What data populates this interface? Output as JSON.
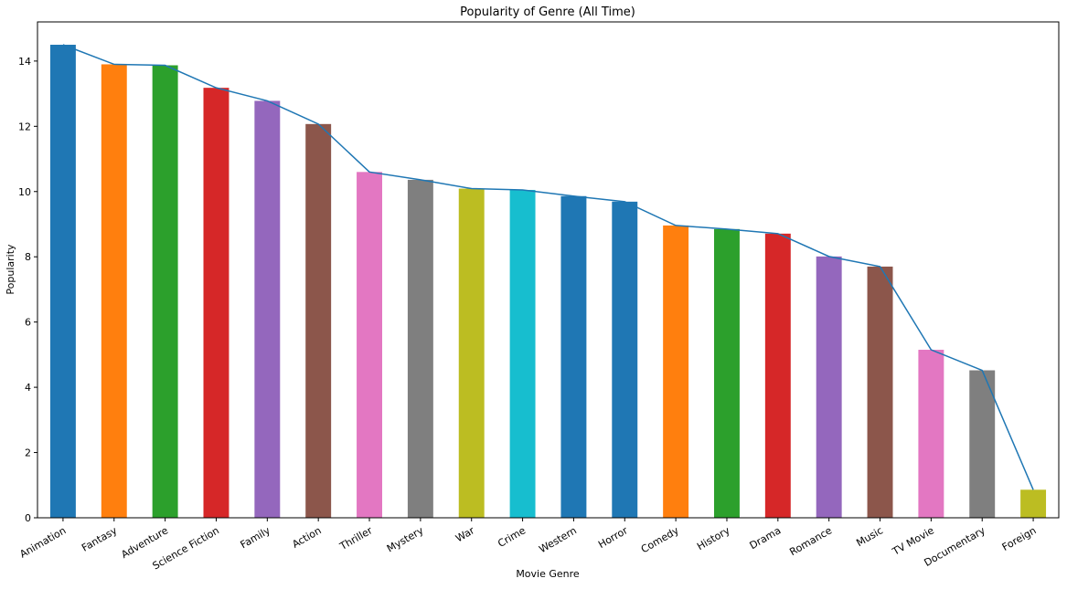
{
  "chart_data": {
    "type": "bar",
    "title": "Popularity of Genre (All Time)",
    "xlabel": "Movie Genre",
    "ylabel": "Popularity",
    "ylim": [
      0,
      15.2
    ],
    "yticks": [
      0,
      2,
      4,
      6,
      8,
      10,
      12,
      14
    ],
    "grid": false,
    "legend": "none",
    "categories": [
      "Animation",
      "Fantasy",
      "Adventure",
      "Science Fiction",
      "Family",
      "Action",
      "Thriller",
      "Mystery",
      "War",
      "Crime",
      "Western",
      "Horror",
      "Comedy",
      "History",
      "Drama",
      "Romance",
      "Music",
      "TV Movie",
      "Documentary",
      "Foreign"
    ],
    "values": [
      14.5,
      13.9,
      13.87,
      13.18,
      12.78,
      12.07,
      10.6,
      10.36,
      10.09,
      10.05,
      9.86,
      9.69,
      8.96,
      8.85,
      8.71,
      8.01,
      7.7,
      5.15,
      4.52,
      0.86
    ],
    "line_overlay": {
      "color": "#1f77b4",
      "values": [
        14.5,
        13.9,
        13.87,
        13.18,
        12.78,
        12.07,
        10.6,
        10.36,
        10.09,
        10.05,
        9.86,
        9.69,
        8.96,
        8.85,
        8.71,
        8.01,
        7.7,
        5.15,
        4.52,
        0.86
      ]
    },
    "colors": [
      "#1f77b4",
      "#ff7f0e",
      "#2ca02c",
      "#d62728",
      "#9467bd",
      "#8c564b",
      "#e377c2",
      "#7f7f7f",
      "#bcbd22",
      "#17becf",
      "#1f77b4",
      "#1f77b4",
      "#ff7f0e",
      "#2ca02c",
      "#d62728",
      "#9467bd",
      "#8c564b",
      "#e377c2",
      "#7f7f7f",
      "#bcbd22"
    ]
  }
}
